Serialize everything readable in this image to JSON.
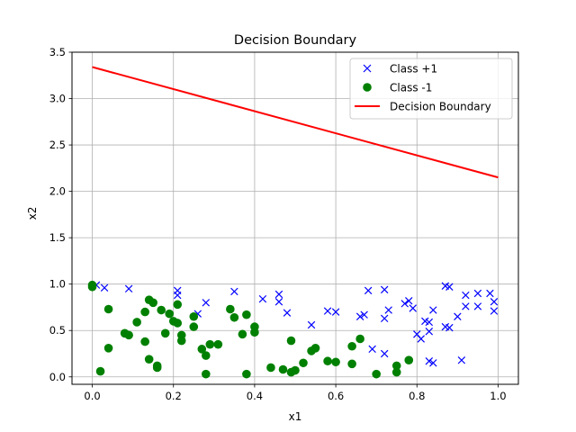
{
  "chart_data": {
    "type": "scatter",
    "title": "Decision Boundary",
    "xlabel": "x1",
    "ylabel": "x2",
    "xlim": [
      -0.05,
      1.05
    ],
    "ylim": [
      -0.08,
      3.5
    ],
    "grid": true,
    "legend_position": "top-right",
    "x_ticks": [
      "0.0",
      "0.2",
      "0.4",
      "0.6",
      "0.8",
      "1.0"
    ],
    "x_tick_values": [
      0.0,
      0.2,
      0.4,
      0.6,
      0.8,
      1.0
    ],
    "y_ticks": [
      "0.0",
      "0.5",
      "1.0",
      "1.5",
      "2.0",
      "2.5",
      "3.0",
      "3.5"
    ],
    "y_tick_values": [
      0.0,
      0.5,
      1.0,
      1.5,
      2.0,
      2.5,
      3.0,
      3.5
    ],
    "series": [
      {
        "name": "Class +1",
        "marker": "x",
        "color": "#0000ff",
        "points": [
          [
            0.01,
            0.99
          ],
          [
            0.03,
            0.96
          ],
          [
            0.09,
            0.95
          ],
          [
            0.21,
            0.93
          ],
          [
            0.21,
            0.88
          ],
          [
            0.26,
            0.68
          ],
          [
            0.28,
            0.8
          ],
          [
            0.35,
            0.92
          ],
          [
            0.42,
            0.84
          ],
          [
            0.46,
            0.89
          ],
          [
            0.46,
            0.81
          ],
          [
            0.48,
            0.69
          ],
          [
            0.54,
            0.56
          ],
          [
            0.58,
            0.71
          ],
          [
            0.6,
            0.7
          ],
          [
            0.66,
            0.65
          ],
          [
            0.67,
            0.67
          ],
          [
            0.68,
            0.93
          ],
          [
            0.69,
            0.3
          ],
          [
            0.72,
            0.94
          ],
          [
            0.72,
            0.63
          ],
          [
            0.73,
            0.72
          ],
          [
            0.72,
            0.25
          ],
          [
            0.77,
            0.79
          ],
          [
            0.78,
            0.82
          ],
          [
            0.79,
            0.74
          ],
          [
            0.8,
            0.46
          ],
          [
            0.81,
            0.41
          ],
          [
            0.82,
            0.6
          ],
          [
            0.83,
            0.59
          ],
          [
            0.83,
            0.49
          ],
          [
            0.83,
            0.17
          ],
          [
            0.84,
            0.15
          ],
          [
            0.84,
            0.72
          ],
          [
            0.87,
            0.98
          ],
          [
            0.88,
            0.97
          ],
          [
            0.87,
            0.54
          ],
          [
            0.88,
            0.53
          ],
          [
            0.9,
            0.65
          ],
          [
            0.91,
            0.18
          ],
          [
            0.92,
            0.88
          ],
          [
            0.92,
            0.76
          ],
          [
            0.95,
            0.9
          ],
          [
            0.95,
            0.76
          ],
          [
            0.98,
            0.9
          ],
          [
            0.99,
            0.81
          ],
          [
            0.99,
            0.71
          ]
        ]
      },
      {
        "name": "Class -1",
        "marker": "o",
        "color": "#008000",
        "points": [
          [
            0.0,
            0.99
          ],
          [
            0.0,
            0.97
          ],
          [
            0.02,
            0.06
          ],
          [
            0.04,
            0.73
          ],
          [
            0.04,
            0.31
          ],
          [
            0.08,
            0.47
          ],
          [
            0.09,
            0.45
          ],
          [
            0.11,
            0.59
          ],
          [
            0.13,
            0.7
          ],
          [
            0.13,
            0.38
          ],
          [
            0.14,
            0.83
          ],
          [
            0.14,
            0.19
          ],
          [
            0.15,
            0.8
          ],
          [
            0.16,
            0.12
          ],
          [
            0.16,
            0.1
          ],
          [
            0.17,
            0.72
          ],
          [
            0.18,
            0.47
          ],
          [
            0.19,
            0.68
          ],
          [
            0.2,
            0.6
          ],
          [
            0.21,
            0.58
          ],
          [
            0.21,
            0.78
          ],
          [
            0.22,
            0.45
          ],
          [
            0.22,
            0.39
          ],
          [
            0.25,
            0.65
          ],
          [
            0.25,
            0.54
          ],
          [
            0.27,
            0.3
          ],
          [
            0.28,
            0.23
          ],
          [
            0.28,
            0.03
          ],
          [
            0.29,
            0.35
          ],
          [
            0.31,
            0.35
          ],
          [
            0.34,
            0.73
          ],
          [
            0.35,
            0.64
          ],
          [
            0.37,
            0.46
          ],
          [
            0.38,
            0.67
          ],
          [
            0.38,
            0.03
          ],
          [
            0.4,
            0.54
          ],
          [
            0.4,
            0.48
          ],
          [
            0.44,
            0.1
          ],
          [
            0.47,
            0.08
          ],
          [
            0.49,
            0.39
          ],
          [
            0.49,
            0.05
          ],
          [
            0.5,
            0.07
          ],
          [
            0.52,
            0.15
          ],
          [
            0.54,
            0.28
          ],
          [
            0.55,
            0.31
          ],
          [
            0.58,
            0.17
          ],
          [
            0.6,
            0.16
          ],
          [
            0.64,
            0.33
          ],
          [
            0.64,
            0.14
          ],
          [
            0.66,
            0.41
          ],
          [
            0.7,
            0.03
          ],
          [
            0.75,
            0.12
          ],
          [
            0.75,
            0.05
          ],
          [
            0.78,
            0.18
          ]
        ]
      },
      {
        "name": "Decision Boundary",
        "type": "line",
        "color": "#ff0000",
        "points": [
          [
            0.0,
            3.34
          ],
          [
            1.0,
            2.15
          ]
        ]
      }
    ]
  }
}
